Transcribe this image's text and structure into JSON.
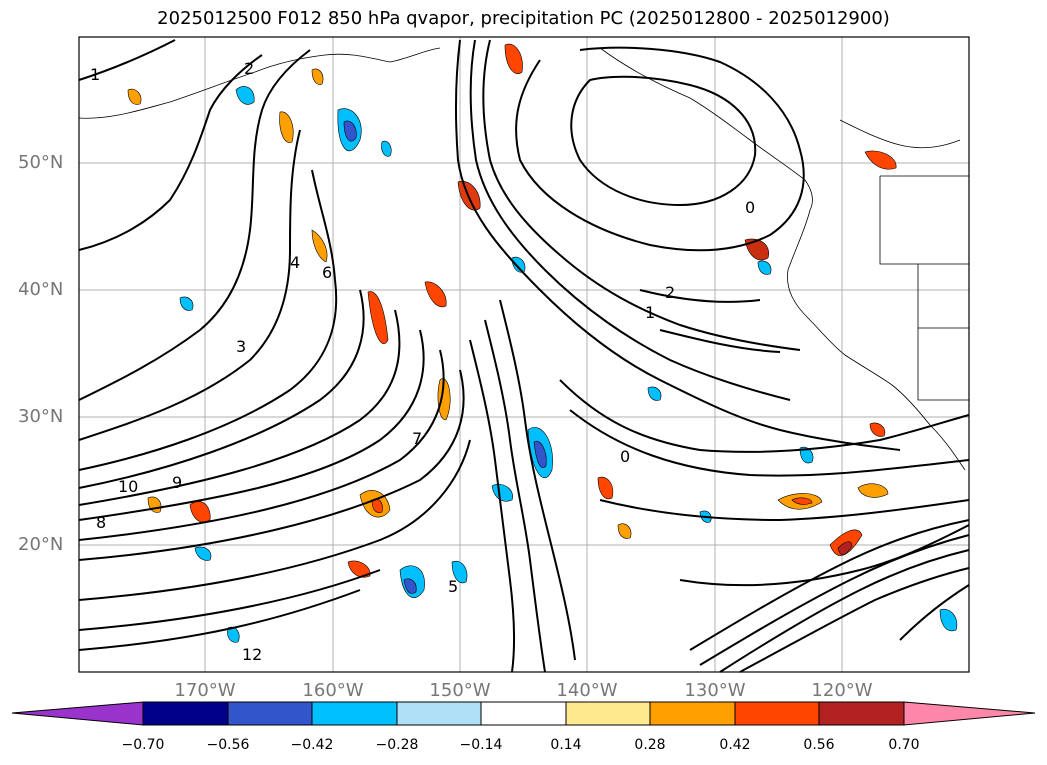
{
  "title": "2025012500 F012 850 hPa qvapor, precipitation PC (2025012800 - 2025012900)",
  "map": {
    "lat_labels": [
      "50°N",
      "40°N",
      "30°N",
      "20°N"
    ],
    "lon_labels": [
      "170°W",
      "160°W",
      "150°W",
      "140°W",
      "130°W",
      "120°W"
    ],
    "contour_labels": [
      "1",
      "2",
      "3",
      "4",
      "5",
      "6",
      "7",
      "8",
      "9",
      "10",
      "12",
      "0",
      "1",
      "2",
      "0"
    ]
  },
  "colorbar": {
    "labels": [
      "−0.70",
      "−0.56",
      "−0.42",
      "−0.28",
      "−0.14",
      "0.14",
      "0.28",
      "0.42",
      "0.56",
      "0.70"
    ],
    "colors": {
      "under": "#9933cc",
      "bins": [
        "#00008b",
        "#3355cc",
        "#00bfff",
        "#b0e0f8",
        "#ffffff",
        "#ffe98f",
        "#ff9f00",
        "#ff4500",
        "#b22222"
      ],
      "over": "#ff88aa"
    }
  }
}
